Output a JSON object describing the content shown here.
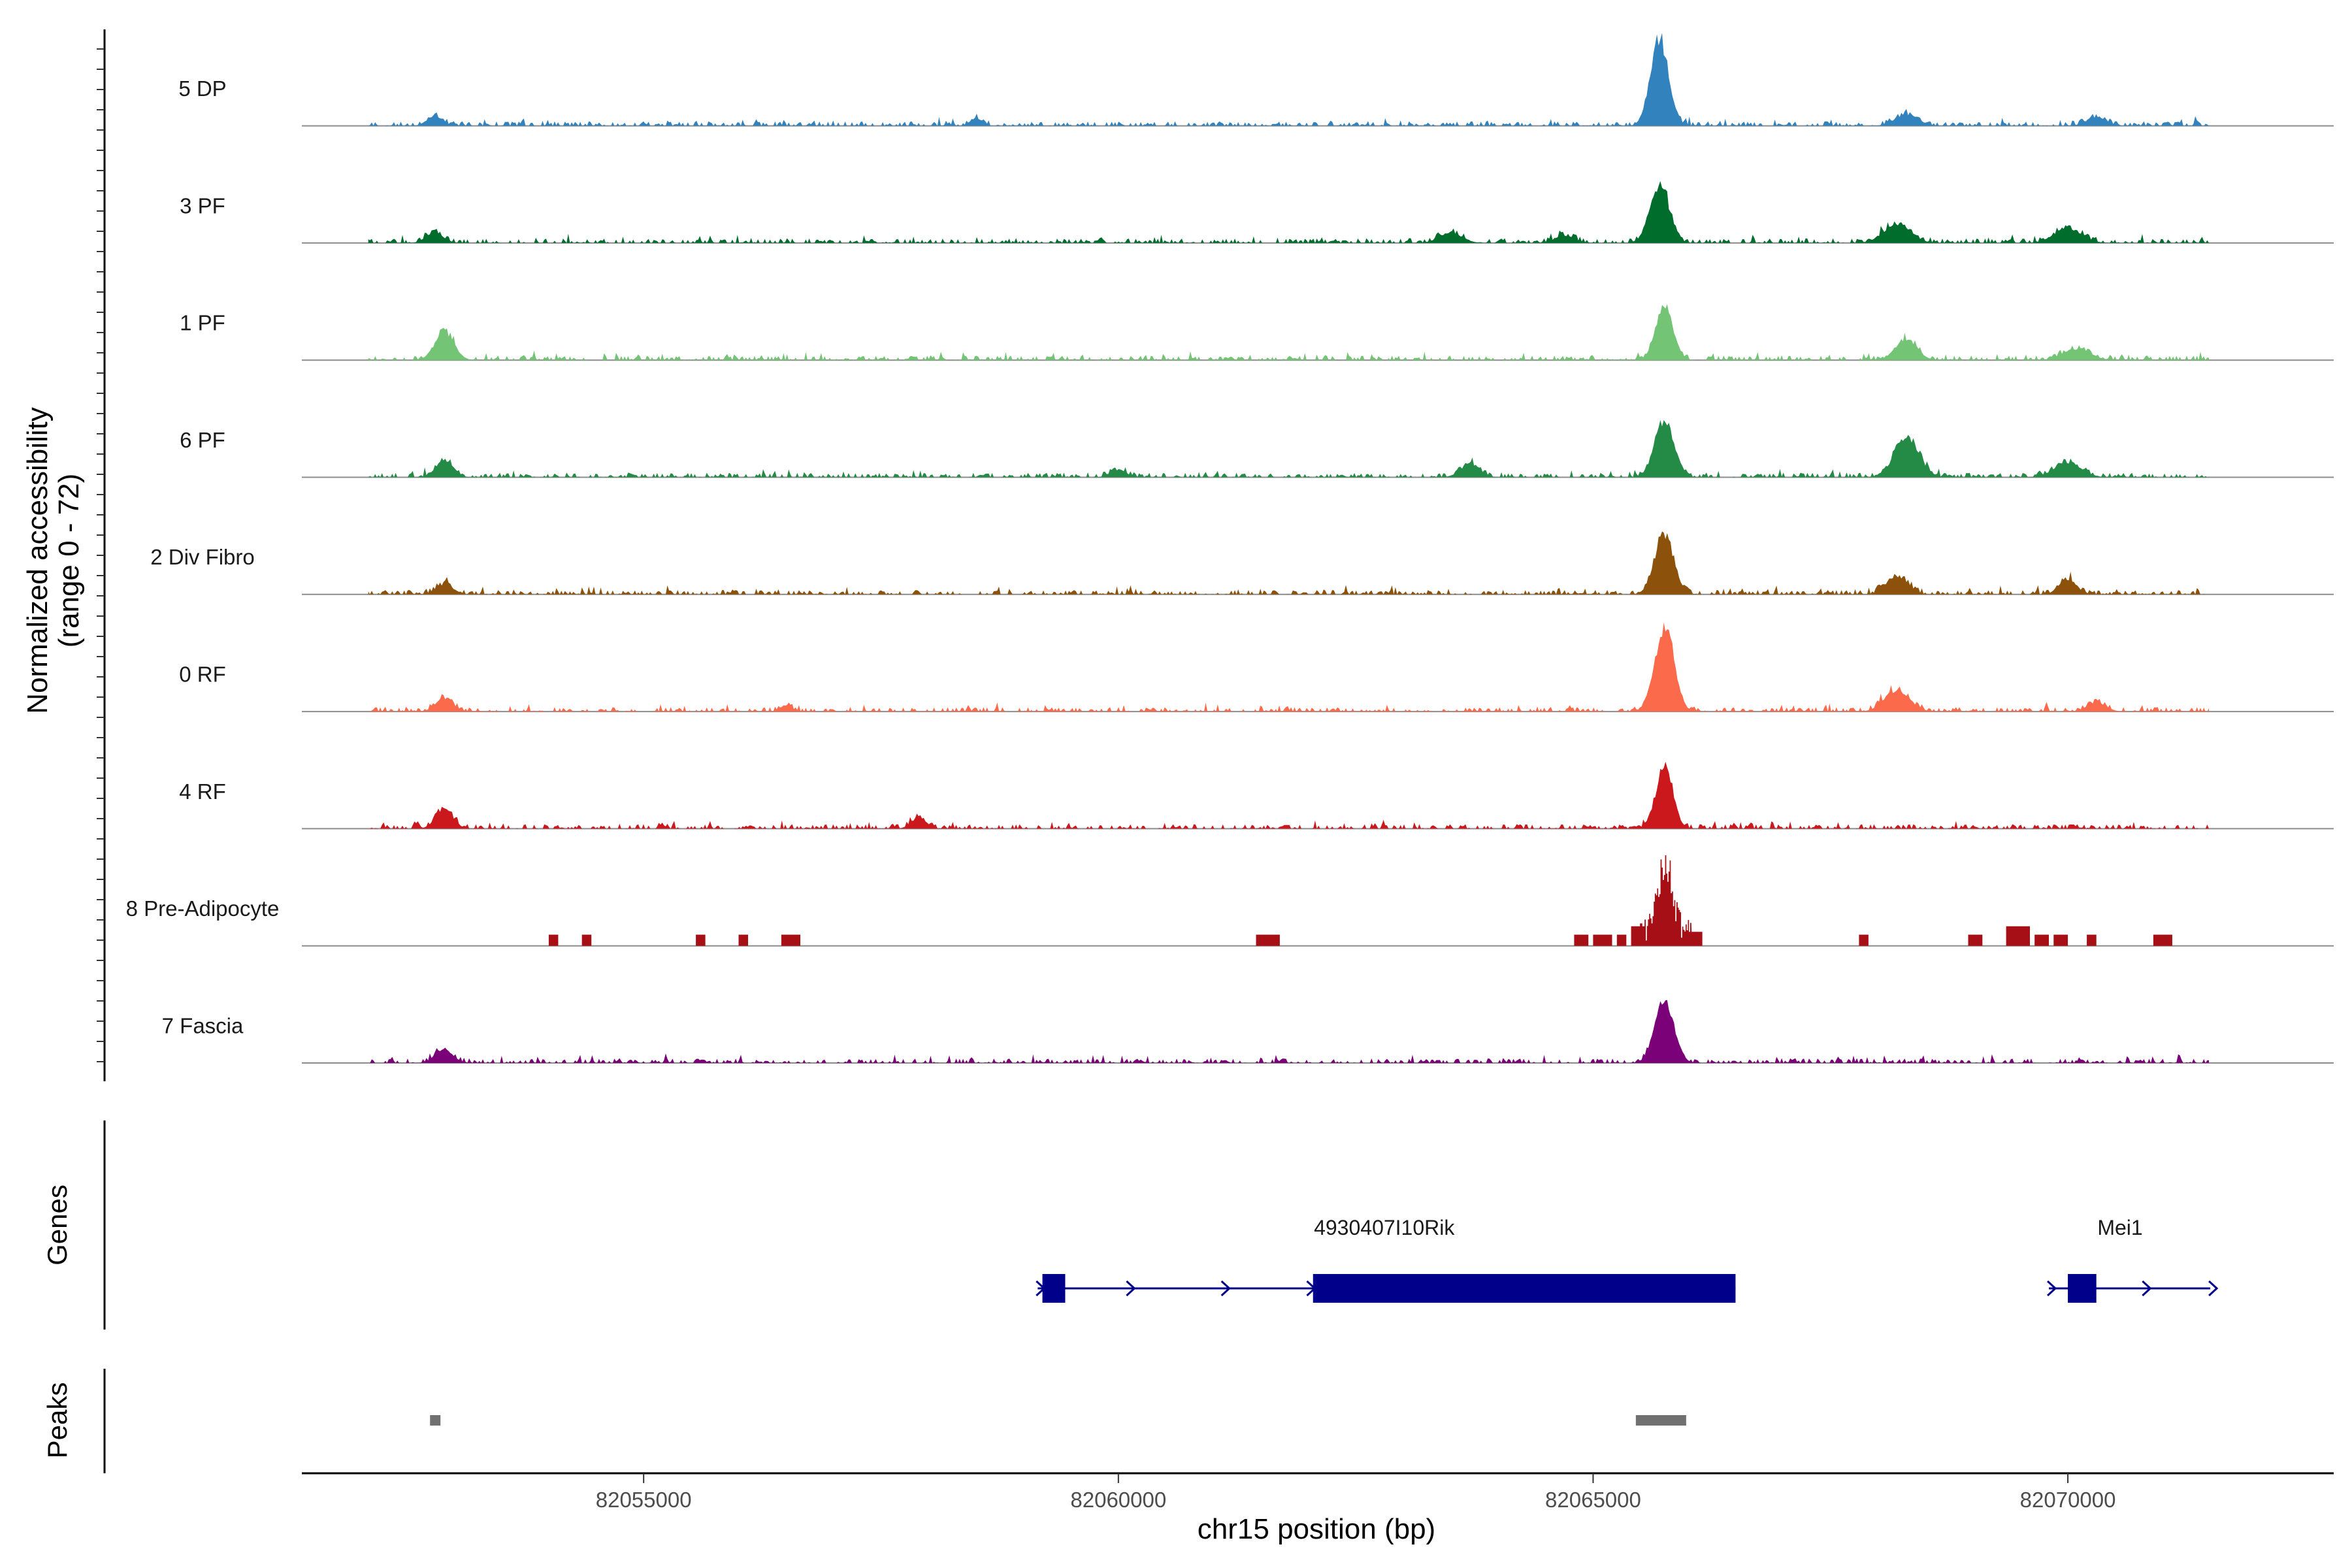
{
  "chart_data": {
    "type": "area",
    "title": "",
    "ylabel_line1": "Normalized accessibility",
    "ylabel_line2": "(range 0 - 72)",
    "xlabel": "chr15 position (bp)",
    "xlim": [
      82051400,
      82072800
    ],
    "ylim": [
      0,
      72
    ],
    "x_ticks": [
      82055000,
      82060000,
      82065000,
      82070000
    ],
    "x_tick_labels": [
      "82055000",
      "82060000",
      "82065000",
      "82070000"
    ],
    "peak_region": [
      82065350,
      82066050
    ],
    "tracks": [
      {
        "name": "5 DP",
        "color": "#3182bd",
        "max": 68,
        "peaks": [
          [
            82052800,
            8,
            80
          ],
          [
            82058500,
            6,
            60
          ],
          [
            82065700,
            68,
            95
          ],
          [
            82068300,
            9,
            120
          ],
          [
            82070300,
            7,
            100
          ]
        ]
      },
      {
        "name": "3 PF",
        "color": "#006d2c",
        "max": 45,
        "peaks": [
          [
            82052800,
            8,
            90
          ],
          [
            82063500,
            8,
            120
          ],
          [
            82064700,
            6,
            100
          ],
          [
            82065700,
            45,
            100
          ],
          [
            82068200,
            15,
            140
          ],
          [
            82070000,
            12,
            140
          ]
        ]
      },
      {
        "name": "1 PF",
        "color": "#74c476",
        "max": 44,
        "peaks": [
          [
            82052900,
            22,
            100
          ],
          [
            82065750,
            44,
            90
          ],
          [
            82068300,
            17,
            110
          ],
          [
            82070100,
            9,
            140
          ]
        ]
      },
      {
        "name": "6 PF",
        "color": "#238b45",
        "max": 44,
        "peaks": [
          [
            82052900,
            14,
            90
          ],
          [
            82060000,
            6,
            80
          ],
          [
            82063700,
            10,
            100
          ],
          [
            82065750,
            44,
            100
          ],
          [
            82068300,
            30,
            130
          ],
          [
            82070000,
            12,
            140
          ]
        ]
      },
      {
        "name": "2 Div Fibro",
        "color": "#8c510a",
        "max": 47,
        "peaks": [
          [
            82052900,
            8,
            90
          ],
          [
            82065750,
            47,
            100
          ],
          [
            82068200,
            15,
            110
          ],
          [
            82070000,
            12,
            90
          ]
        ]
      },
      {
        "name": "0 RF",
        "color": "#fb6a4a",
        "max": 66,
        "peaks": [
          [
            82052900,
            10,
            90
          ],
          [
            82056500,
            5,
            60
          ],
          [
            82065750,
            66,
            100
          ],
          [
            82068200,
            17,
            130
          ],
          [
            82070300,
            7,
            100
          ]
        ]
      },
      {
        "name": "4 RF",
        "color": "#cb181d",
        "max": 48,
        "peaks": [
          [
            82052900,
            16,
            90
          ],
          [
            82057900,
            9,
            80
          ],
          [
            82065750,
            48,
            90
          ]
        ]
      },
      {
        "name": "8 Pre-Adipocyte",
        "color": "#a50f15",
        "max": 62,
        "peaks": [
          [
            82065750,
            62,
            130
          ]
        ]
      },
      {
        "name": "7 Fascia",
        "color": "#7a0177",
        "max": 48,
        "peaks": [
          [
            82052900,
            11,
            90
          ],
          [
            82065750,
            48,
            100
          ]
        ]
      }
    ],
    "blocky_track": "8 Pre-Adipocyte",
    "blocky_segments": [
      [
        82054000,
        82054100,
        8
      ],
      [
        82054350,
        82054450,
        8
      ],
      [
        82055550,
        82055650,
        8
      ],
      [
        82056000,
        82056100,
        8
      ],
      [
        82056450,
        82056650,
        8
      ],
      [
        82061450,
        82061700,
        8
      ],
      [
        82064800,
        82064950,
        8
      ],
      [
        82065000,
        82065200,
        8
      ],
      [
        82065250,
        82065350,
        8
      ],
      [
        82065400,
        82065550,
        14
      ],
      [
        82066000,
        82066150,
        10
      ],
      [
        82067800,
        82067900,
        8
      ],
      [
        82068950,
        82069100,
        8
      ],
      [
        82069350,
        82069600,
        14
      ],
      [
        82069650,
        82069800,
        8
      ],
      [
        82069850,
        82070000,
        8
      ],
      [
        82070200,
        82070300,
        8
      ],
      [
        82070900,
        82071100,
        8
      ]
    ],
    "gene_panel_title": "Genes",
    "genes": [
      {
        "name": "4930407I10Rik",
        "start": 82059150,
        "end": 82066500,
        "strand": "+",
        "exons": [
          [
            82059200,
            82059440
          ],
          [
            82062050,
            82066500
          ]
        ],
        "arrows": [
          82059150,
          82060100,
          82061100,
          82062000
        ]
      },
      {
        "name": "Mei1",
        "start": 82069800,
        "end": 82071500,
        "strand": "+",
        "exons": [
          [
            82070000,
            82070300
          ]
        ],
        "arrows": [
          82069800,
          82070800,
          82071500
        ]
      }
    ],
    "gene_color": "#00008b",
    "peaks_panel_title": "Peaks",
    "peak_regions": [
      [
        82052750,
        82052850
      ],
      [
        82065450,
        82065980
      ]
    ],
    "peak_color": "#707070"
  }
}
